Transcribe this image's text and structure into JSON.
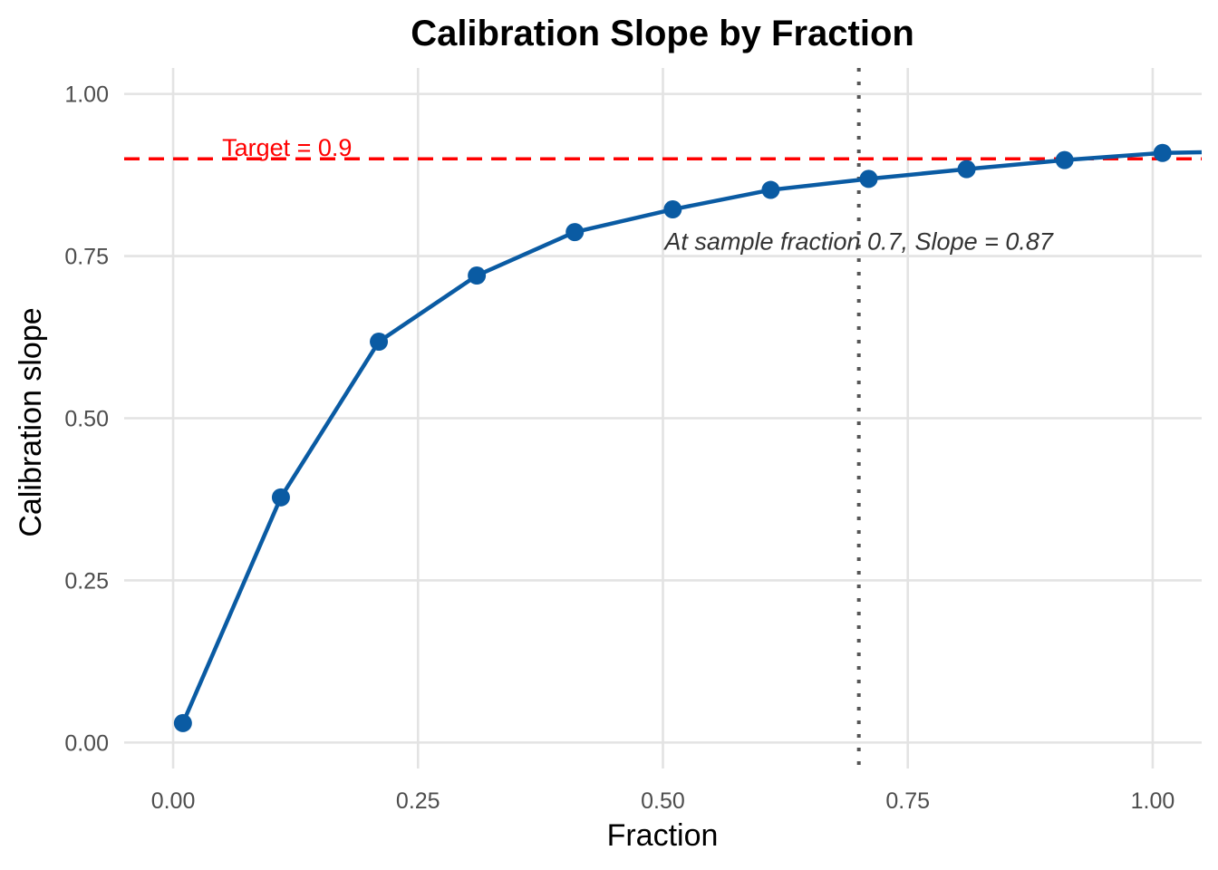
{
  "chart_data": {
    "type": "line",
    "title": "Calibration Slope by Fraction",
    "xlabel": "Fraction",
    "ylabel": "Calibration slope",
    "xlim": [
      -0.05,
      1.05
    ],
    "ylim": [
      -0.04,
      1.04
    ],
    "x_ticks": [
      0.0,
      0.25,
      0.5,
      0.75,
      1.0
    ],
    "x_tick_labels": [
      "0.00",
      "0.25",
      "0.50",
      "0.75",
      "1.00"
    ],
    "y_ticks": [
      0.0,
      0.25,
      0.5,
      0.75,
      1.0
    ],
    "y_tick_labels": [
      "0.00",
      "0.25",
      "0.50",
      "0.75",
      "1.00"
    ],
    "grid": true,
    "series": [
      {
        "x": [
          0.01,
          0.11,
          0.21,
          0.31,
          0.41,
          0.51,
          0.61,
          0.71,
          0.81,
          0.91,
          1.01
        ],
        "values": [
          0.03,
          0.378,
          0.618,
          0.72,
          0.787,
          0.822,
          0.852,
          0.869,
          0.884,
          0.898,
          0.909
        ],
        "line_end": {
          "x": 1.05,
          "y": 0.91
        },
        "color": "#0a5ba3"
      }
    ],
    "reference_lines": {
      "target": {
        "y": 0.9,
        "label": "Target = 0.9",
        "color": "#ff0000",
        "style": "dashed"
      },
      "fraction": {
        "x": 0.7,
        "color": "#555555",
        "style": "dotted"
      }
    },
    "annotation": {
      "text": "At sample fraction 0.7, Slope = 0.87",
      "x": 0.7,
      "y": 0.76
    }
  }
}
